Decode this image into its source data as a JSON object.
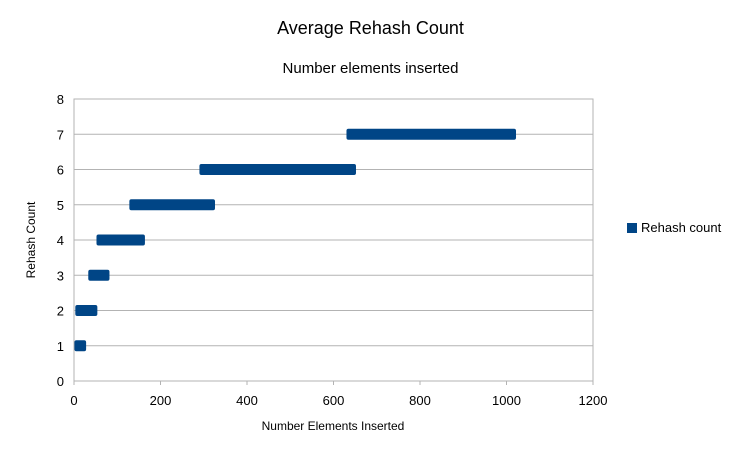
{
  "chart_data": {
    "type": "scatter",
    "title": "Average Rehash Count",
    "subtitle": "Number elements inserted",
    "xlabel": "Number Elements Inserted",
    "ylabel": "Rehash Count",
    "xlim": [
      0,
      1200
    ],
    "ylim": [
      0,
      8
    ],
    "xticks": [
      0,
      200,
      400,
      600,
      800,
      1000,
      1200
    ],
    "yticks": [
      0,
      1,
      2,
      3,
      4,
      5,
      6,
      7,
      8
    ],
    "grid": "horizontal",
    "legend_position": "right",
    "series": [
      {
        "name": "Rehash count",
        "color": "#004586",
        "marker": "square",
        "segments": [
          {
            "y": 1,
            "x_start": 1,
            "x_end": 28
          },
          {
            "y": 2,
            "x_start": 3,
            "x_end": 54
          },
          {
            "y": 3,
            "x_start": 33,
            "x_end": 82
          },
          {
            "y": 4,
            "x_start": 52,
            "x_end": 164
          },
          {
            "y": 5,
            "x_start": 128,
            "x_end": 326
          },
          {
            "y": 6,
            "x_start": 290,
            "x_end": 652
          },
          {
            "y": 7,
            "x_start": 630,
            "x_end": 1022
          }
        ]
      }
    ]
  }
}
